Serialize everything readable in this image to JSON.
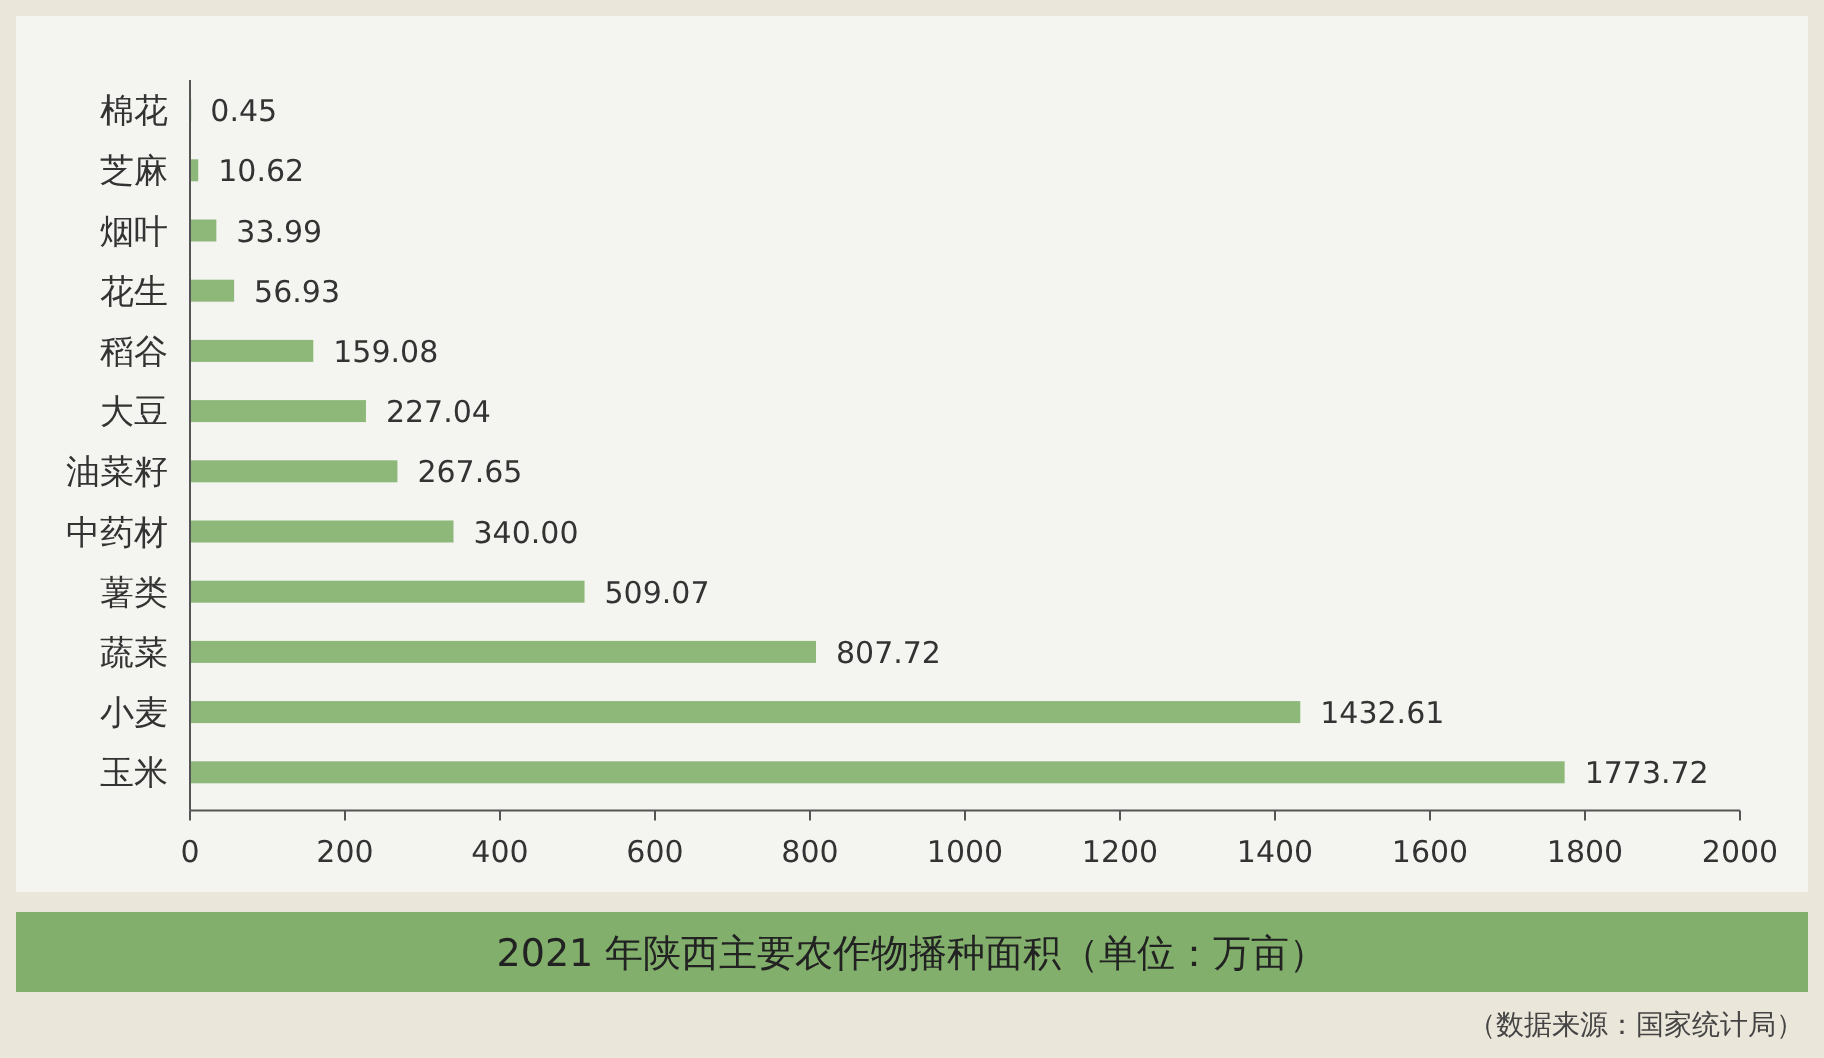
{
  "chart_data": {
    "type": "bar",
    "orientation": "horizontal",
    "title": "2021 年陕西主要农作物播种面积（单位：万亩）",
    "categories": [
      "棉花",
      "芝麻",
      "烟叶",
      "花生",
      "稻谷",
      "大豆",
      "油菜籽",
      "中药材",
      "薯类",
      "蔬菜",
      "小麦",
      "玉米"
    ],
    "values": [
      0.45,
      10.62,
      33.99,
      56.93,
      159.08,
      227.04,
      267.65,
      340.0,
      509.07,
      807.72,
      1432.61,
      1773.72
    ],
    "value_labels": [
      "0.45",
      "10.62",
      "33.99",
      "56.93",
      "159.08",
      "227.04",
      "267.65",
      "340.00",
      "509.07",
      "807.72",
      "1432.61",
      "1773.72"
    ],
    "color": "#8db87a",
    "xlim": [
      0,
      2000
    ],
    "xticks": [
      0,
      200,
      400,
      600,
      800,
      1000,
      1200,
      1400,
      1600,
      1800,
      2000
    ],
    "grid": false,
    "annotations": [
      "（数据来源：国家统计局）"
    ]
  }
}
